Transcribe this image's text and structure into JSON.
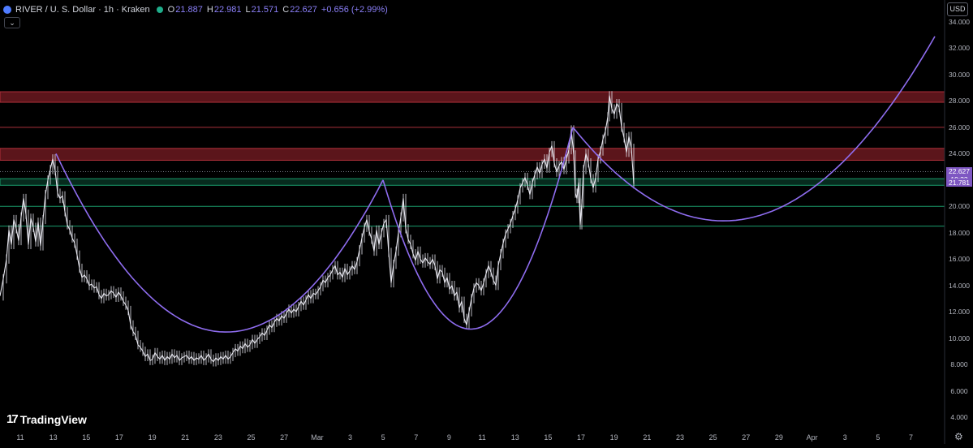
{
  "header": {
    "symbol_title": "RIVER / U. S. Dollar · 1h · Kraken",
    "ohlc": [
      {
        "key": "O",
        "value": "21.887"
      },
      {
        "key": "H",
        "value": "22.981"
      },
      {
        "key": "L",
        "value": "21.571"
      },
      {
        "key": "C",
        "value": "22.627"
      }
    ],
    "change": "+0.656 (+2.99%)"
  },
  "currency_label": "USD",
  "collapse_glyph": "⌄",
  "logo_text": "TradingView",
  "icons": {
    "symbol": "coin-icon",
    "live": "live-status-icon",
    "settings": "gear-icon",
    "logo": "tradingview-logo-icon"
  },
  "price_labels": {
    "last": "22.627",
    "countdown": "19:23",
    "level": "21.781"
  },
  "colors": {
    "background": "#000000",
    "candle": "#e8e8f0",
    "curve": "#8f6df0",
    "resistance_zone": "#7a1c24",
    "support_line": "#1a9c6b",
    "price_tag": "#7e57c2"
  },
  "chart_data": {
    "type": "line",
    "y_ticks": [
      "34.000",
      "32.000",
      "30.000",
      "28.000",
      "26.000",
      "24.000",
      "22.000",
      "20.000",
      "18.000",
      "16.000",
      "14.000",
      "12.000",
      "10.000",
      "8.000",
      "6.000",
      "4.000"
    ],
    "x_ticks": [
      "11",
      "13",
      "15",
      "17",
      "19",
      "21",
      "23",
      "25",
      "27",
      "Mar",
      "3",
      "5",
      "7",
      "9",
      "11",
      "13",
      "15",
      "17",
      "19",
      "21",
      "23",
      "25",
      "27",
      "29",
      "Apr",
      "3",
      "5",
      "7"
    ],
    "ylim": [
      3.5,
      35
    ],
    "price_line": [
      [
        0,
        13.2
      ],
      [
        4,
        14.5
      ],
      [
        8,
        16.0
      ],
      [
        11,
        18.2
      ],
      [
        14,
        17.1
      ],
      [
        17,
        19.0
      ],
      [
        20,
        18.3
      ],
      [
        23,
        17.4
      ],
      [
        26,
        19.2
      ],
      [
        29,
        20.6
      ],
      [
        32,
        19.4
      ],
      [
        35,
        17.1
      ],
      [
        38,
        19.1
      ],
      [
        41,
        18.4
      ],
      [
        44,
        17.3
      ],
      [
        47,
        18.8
      ],
      [
        50,
        17.0
      ],
      [
        53,
        19.0
      ],
      [
        56,
        20.9
      ],
      [
        59,
        22.0
      ],
      [
        62,
        22.8
      ],
      [
        65,
        23.6
      ],
      [
        68,
        22.7
      ],
      [
        71,
        21.0
      ],
      [
        74,
        20.6
      ],
      [
        77,
        20.8
      ],
      [
        80,
        19.6
      ],
      [
        83,
        18.6
      ],
      [
        86,
        18.2
      ],
      [
        89,
        17.6
      ],
      [
        92,
        17.2
      ],
      [
        95,
        16.3
      ],
      [
        98,
        15.3
      ],
      [
        101,
        14.6
      ],
      [
        104,
        14.8
      ],
      [
        107,
        14.5
      ],
      [
        110,
        14.0
      ],
      [
        113,
        14.1
      ],
      [
        116,
        13.8
      ],
      [
        119,
        13.9
      ],
      [
        122,
        13.3
      ],
      [
        125,
        13.0
      ],
      [
        128,
        13.4
      ],
      [
        131,
        13.2
      ],
      [
        134,
        13.3
      ],
      [
        137,
        13.6
      ],
      [
        140,
        13.4
      ],
      [
        143,
        13.1
      ],
      [
        146,
        13.5
      ],
      [
        149,
        13.2
      ],
      [
        152,
        12.8
      ],
      [
        155,
        12.5
      ],
      [
        158,
        12.1
      ],
      [
        161,
        11.0
      ],
      [
        164,
        10.5
      ],
      [
        167,
        10.2
      ],
      [
        170,
        9.5
      ],
      [
        173,
        9.3
      ],
      [
        176,
        9.0
      ],
      [
        179,
        8.6
      ],
      [
        182,
        8.8
      ],
      [
        185,
        8.3
      ],
      [
        188,
        8.4
      ],
      [
        191,
        8.9
      ],
      [
        194,
        8.6
      ],
      [
        197,
        8.4
      ],
      [
        200,
        8.7
      ],
      [
        203,
        8.3
      ],
      [
        206,
        8.6
      ],
      [
        209,
        8.4
      ],
      [
        212,
        8.8
      ],
      [
        215,
        8.5
      ],
      [
        218,
        8.7
      ],
      [
        221,
        8.3
      ],
      [
        224,
        8.5
      ],
      [
        227,
        8.6
      ],
      [
        230,
        8.7
      ],
      [
        233,
        8.4
      ],
      [
        236,
        8.6
      ],
      [
        239,
        8.3
      ],
      [
        242,
        8.5
      ],
      [
        245,
        8.4
      ],
      [
        248,
        8.7
      ],
      [
        251,
        8.3
      ],
      [
        254,
        8.5
      ],
      [
        257,
        8.8
      ],
      [
        260,
        8.4
      ],
      [
        263,
        8.2
      ],
      [
        266,
        8.5
      ],
      [
        269,
        8.3
      ],
      [
        272,
        8.6
      ],
      [
        275,
        8.4
      ],
      [
        278,
        8.7
      ],
      [
        281,
        8.4
      ],
      [
        284,
        8.6
      ],
      [
        287,
        8.9
      ],
      [
        290,
        9.2
      ],
      [
        293,
        9.0
      ],
      [
        296,
        9.4
      ],
      [
        299,
        9.2
      ],
      [
        302,
        9.6
      ],
      [
        305,
        9.3
      ],
      [
        308,
        9.5
      ],
      [
        311,
        9.9
      ],
      [
        314,
        9.6
      ],
      [
        317,
        9.9
      ],
      [
        320,
        10.1
      ],
      [
        323,
        10.4
      ],
      [
        326,
        10.2
      ],
      [
        329,
        10.6
      ],
      [
        332,
        11.0
      ],
      [
        335,
        10.8
      ],
      [
        338,
        11.2
      ],
      [
        341,
        11.5
      ],
      [
        344,
        11.3
      ],
      [
        347,
        11.7
      ],
      [
        350,
        11.5
      ],
      [
        353,
        11.9
      ],
      [
        356,
        12.2
      ],
      [
        359,
        11.9
      ],
      [
        362,
        12.2
      ],
      [
        365,
        12.0
      ],
      [
        368,
        12.4
      ],
      [
        371,
        12.8
      ],
      [
        374,
        12.5
      ],
      [
        377,
        12.9
      ],
      [
        380,
        13.3
      ],
      [
        383,
        13.0
      ],
      [
        386,
        13.4
      ],
      [
        389,
        13.3
      ],
      [
        392,
        13.6
      ],
      [
        395,
        13.9
      ],
      [
        398,
        14.4
      ],
      [
        401,
        14.2
      ],
      [
        404,
        14.6
      ],
      [
        407,
        14.8
      ],
      [
        410,
        15.2
      ],
      [
        413,
        15.5
      ],
      [
        416,
        14.8
      ],
      [
        419,
        15.0
      ],
      [
        422,
        14.6
      ],
      [
        425,
        15.3
      ],
      [
        428,
        14.8
      ],
      [
        431,
        15.1
      ],
      [
        434,
        15.5
      ],
      [
        437,
        15.2
      ],
      [
        440,
        15.8
      ],
      [
        443,
        16.7
      ],
      [
        446,
        17.6
      ],
      [
        449,
        18.4
      ],
      [
        452,
        19.0
      ],
      [
        455,
        18.1
      ],
      [
        458,
        17.5
      ],
      [
        461,
        16.6
      ],
      [
        464,
        18.2
      ],
      [
        467,
        17.1
      ],
      [
        470,
        18.0
      ],
      [
        473,
        18.7
      ],
      [
        476,
        19.0
      ],
      [
        479,
        16.5
      ],
      [
        482,
        14.2
      ],
      [
        485,
        15.6
      ],
      [
        488,
        16.6
      ],
      [
        491,
        18.0
      ],
      [
        494,
        19.2
      ],
      [
        497,
        20.6
      ],
      [
        500,
        18.3
      ],
      [
        503,
        17.5
      ],
      [
        506,
        17.1
      ],
      [
        509,
        16.4
      ],
      [
        512,
        15.9
      ],
      [
        515,
        16.6
      ],
      [
        518,
        16.0
      ],
      [
        521,
        15.7
      ],
      [
        524,
        16.1
      ],
      [
        527,
        15.8
      ],
      [
        530,
        15.6
      ],
      [
        533,
        16.0
      ],
      [
        536,
        15.5
      ],
      [
        539,
        14.5
      ],
      [
        542,
        15.2
      ],
      [
        545,
        15.0
      ],
      [
        548,
        14.2
      ],
      [
        551,
        14.6
      ],
      [
        554,
        13.7
      ],
      [
        557,
        14.0
      ],
      [
        560,
        13.2
      ],
      [
        563,
        13.5
      ],
      [
        566,
        12.3
      ],
      [
        569,
        12.8
      ],
      [
        572,
        11.5
      ],
      [
        575,
        11.0
      ],
      [
        578,
        12.0
      ],
      [
        581,
        13.0
      ],
      [
        584,
        13.8
      ],
      [
        587,
        14.2
      ],
      [
        590,
        14.0
      ],
      [
        593,
        13.6
      ],
      [
        596,
        14.2
      ],
      [
        599,
        14.9
      ],
      [
        602,
        15.5
      ],
      [
        605,
        15.0
      ],
      [
        608,
        14.4
      ],
      [
        611,
        14.0
      ],
      [
        614,
        15.5
      ],
      [
        617,
        16.4
      ],
      [
        620,
        17.2
      ],
      [
        623,
        17.9
      ],
      [
        626,
        18.3
      ],
      [
        629,
        18.7
      ],
      [
        632,
        19.3
      ],
      [
        635,
        19.8
      ],
      [
        638,
        20.5
      ],
      [
        641,
        21.4
      ],
      [
        644,
        21.8
      ],
      [
        647,
        22.2
      ],
      [
        650,
        21.6
      ],
      [
        653,
        20.9
      ],
      [
        656,
        21.8
      ],
      [
        659,
        22.4
      ],
      [
        662,
        23.0
      ],
      [
        665,
        22.5
      ],
      [
        668,
        23.2
      ],
      [
        671,
        23.6
      ],
      [
        674,
        22.9
      ],
      [
        677,
        24.1
      ],
      [
        680,
        24.6
      ],
      [
        683,
        23.3
      ],
      [
        686,
        22.6
      ],
      [
        689,
        23.1
      ],
      [
        692,
        23.4
      ],
      [
        695,
        22.8
      ],
      [
        698,
        23.6
      ],
      [
        701,
        24.3
      ],
      [
        704,
        25.8
      ],
      [
        707,
        23.9
      ],
      [
        709,
        21.0
      ],
      [
        711,
        20.6
      ],
      [
        713,
        21.8
      ],
      [
        715,
        18.6
      ],
      [
        717,
        20.2
      ],
      [
        719,
        22.8
      ],
      [
        722,
        24.0
      ],
      [
        725,
        23.3
      ],
      [
        728,
        22.1
      ],
      [
        731,
        21.4
      ],
      [
        734,
        22.2
      ],
      [
        737,
        23.6
      ],
      [
        740,
        24.2
      ],
      [
        743,
        25.1
      ],
      [
        746,
        25.7
      ],
      [
        749,
        26.8
      ],
      [
        751,
        28.4
      ],
      [
        754,
        27.4
      ],
      [
        757,
        27.0
      ],
      [
        760,
        27.8
      ],
      [
        763,
        27.5
      ],
      [
        766,
        26.0
      ],
      [
        769,
        25.2
      ],
      [
        772,
        24.1
      ],
      [
        775,
        25.3
      ],
      [
        778,
        24.4
      ],
      [
        781,
        21.7
      ]
    ],
    "zones": [
      {
        "kind": "resistance-zone",
        "from": 27.9,
        "to": 28.7
      },
      {
        "kind": "resistance-zone",
        "from": 23.5,
        "to": 24.4
      },
      {
        "kind": "resistance-line",
        "at": 26.0
      },
      {
        "kind": "support-zone",
        "from": 21.6,
        "to": 22.1
      },
      {
        "kind": "support-line",
        "at": 20.0
      },
      {
        "kind": "support-line",
        "at": 18.5
      }
    ],
    "curves": [
      {
        "from": [
          69,
          24.0
        ],
        "to": [
          472,
          22.0
        ],
        "bottom": [
          267,
          10.5
        ]
      },
      {
        "from": [
          472,
          22.0
        ],
        "to": [
          706,
          26.0
        ],
        "bottom": [
          576,
          10.7
        ]
      },
      {
        "from": [
          706,
          26.0
        ],
        "to": [
          1152,
          32.9
        ],
        "bottom": [
          890,
          18.9
        ]
      }
    ],
    "last_price": 22.627,
    "level_price": 21.781
  }
}
